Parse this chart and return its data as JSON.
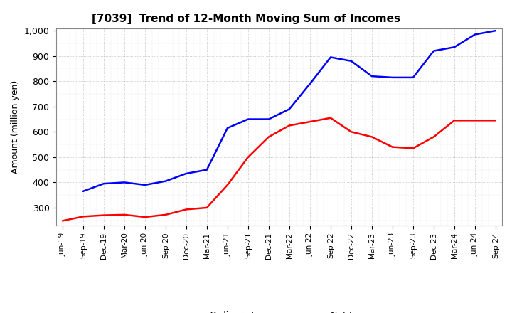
{
  "title": "[7039]  Trend of 12-Month Moving Sum of Incomes",
  "ylabel": "Amount (million yen)",
  "ylim": [
    230,
    1010
  ],
  "yticks": [
    300,
    400,
    500,
    600,
    700,
    800,
    900,
    1000
  ],
  "x_labels": [
    "Jun-19",
    "Sep-19",
    "Dec-19",
    "Mar-20",
    "Jun-20",
    "Sep-20",
    "Dec-20",
    "Mar-21",
    "Jun-21",
    "Sep-21",
    "Dec-21",
    "Mar-22",
    "Jun-22",
    "Sep-22",
    "Dec-22",
    "Mar-23",
    "Jun-23",
    "Sep-23",
    "Dec-23",
    "Mar-24",
    "Jun-24",
    "Sep-24"
  ],
  "ordinary_income": [
    null,
    365,
    395,
    400,
    390,
    405,
    435,
    450,
    615,
    650,
    650,
    690,
    790,
    895,
    880,
    820,
    815,
    815,
    920,
    935,
    985,
    1000
  ],
  "net_income": [
    248,
    265,
    270,
    272,
    263,
    272,
    293,
    300,
    390,
    500,
    580,
    625,
    640,
    655,
    600,
    580,
    540,
    535,
    580,
    645,
    645,
    645
  ],
  "ordinary_color": "#0000FF",
  "net_color": "#FF0000",
  "line_width": 1.8,
  "background_color": "#FFFFFF",
  "grid_color": "#AAAAAA",
  "title_fontsize": 11,
  "ylabel_fontsize": 9,
  "ytick_fontsize": 9,
  "xtick_fontsize": 7.5,
  "legend_fontsize": 9
}
